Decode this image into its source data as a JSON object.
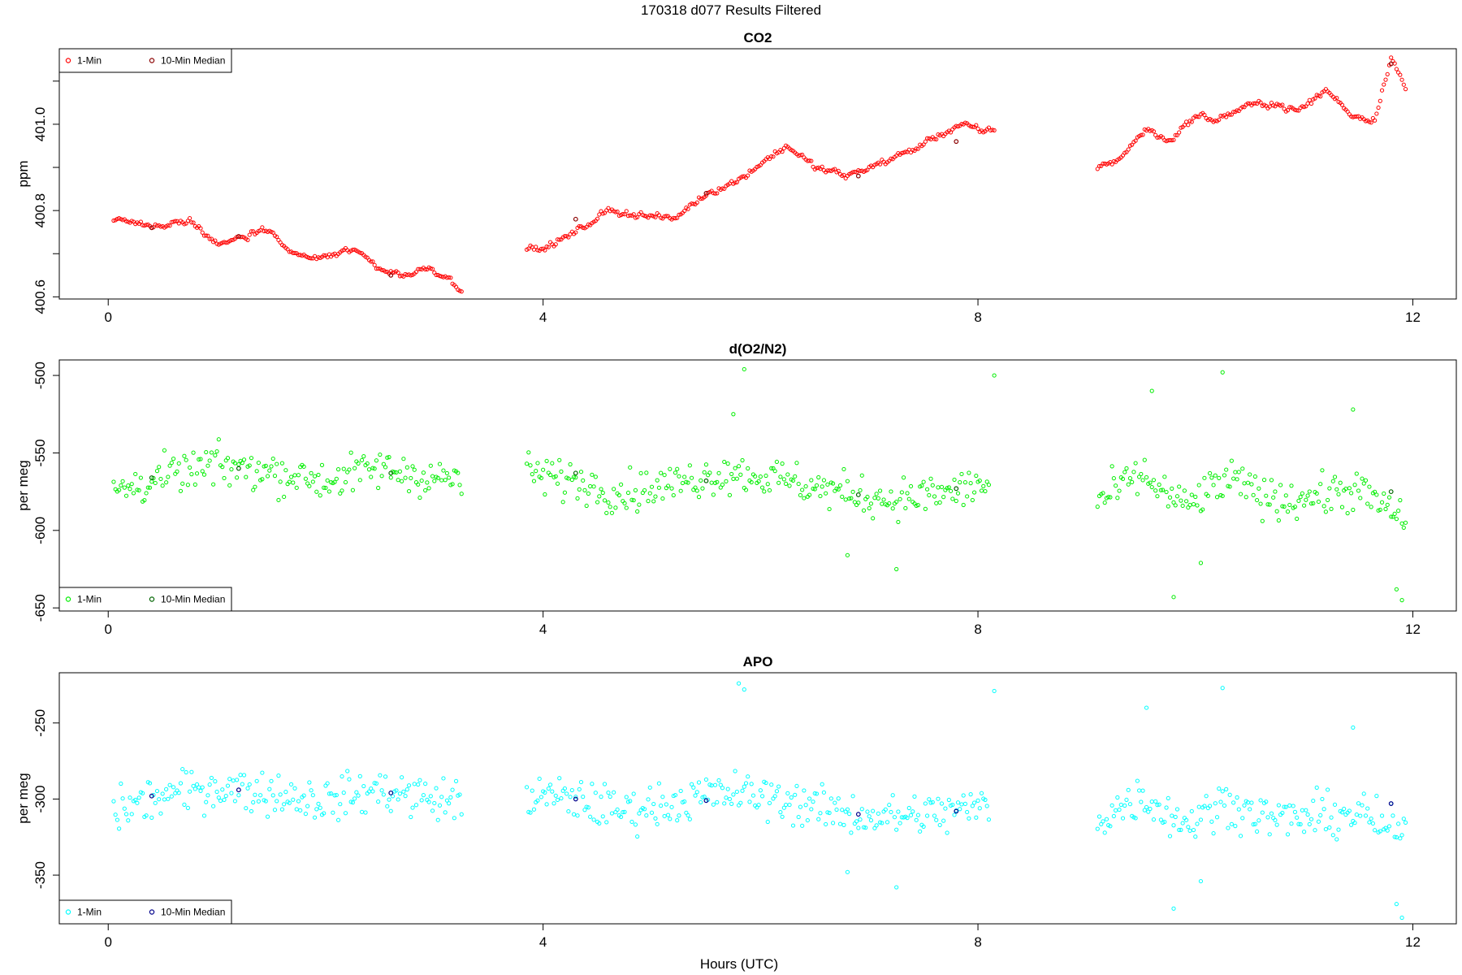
{
  "page_title": "170318   d077   Results Filtered",
  "xlabel": "Hours (UTC)",
  "legend_labels": {
    "one_min": "1-Min",
    "ten_min": "10-Min Median"
  },
  "chart_data": [
    {
      "type": "scatter",
      "title": "CO2",
      "ylabel": "ppm",
      "xlim": [
        -0.45,
        12.4
      ],
      "ylim": [
        400.595,
        401.175
      ],
      "xticks": [
        0,
        4,
        8,
        12
      ],
      "xtick_labels": [
        "0",
        "4",
        "8",
        "12"
      ],
      "yticks": [
        400.6,
        400.7,
        400.8,
        400.9,
        401.0,
        401.1
      ],
      "ytick_labels": [
        "400.6",
        "",
        "400.8",
        "",
        "401.0",
        ""
      ],
      "legend_position": "top-left",
      "colors": {
        "one_min": "#ff0000",
        "ten_min": "#8b0000"
      },
      "series": [
        {
          "name": "1-Min",
          "segments": [
            {
              "x": [
                0.05,
                0.3,
                0.5,
                0.75,
                1.0,
                1.25,
                1.45,
                1.7,
                2.0,
                2.25,
                2.55,
                2.75,
                2.95,
                3.15,
                3.25
              ],
              "y": [
                400.78,
                400.77,
                400.76,
                400.78,
                400.72,
                400.74,
                400.76,
                400.7,
                400.69,
                400.71,
                400.66,
                400.65,
                400.67,
                400.64,
                400.62
              ]
            },
            {
              "x": [
                3.85,
                4.0,
                4.3,
                4.6,
                4.9,
                5.2,
                5.5,
                5.8,
                6.0,
                6.25,
                6.5,
                6.8,
                7.1,
                7.4,
                7.6,
                7.85,
                8.05,
                8.15
              ],
              "y": [
                400.71,
                400.71,
                400.75,
                400.8,
                400.79,
                400.78,
                400.84,
                400.87,
                400.91,
                400.95,
                400.9,
                400.88,
                400.91,
                400.94,
                400.97,
                401.0,
                400.98,
                400.99
              ]
            },
            {
              "x": [
                9.1,
                9.3,
                9.55,
                9.75,
                10.0,
                10.2,
                10.45,
                10.7,
                10.95,
                11.2,
                11.45,
                11.65,
                11.8,
                11.95
              ],
              "y": [
                400.9,
                400.92,
                400.99,
                400.96,
                401.02,
                401.01,
                401.04,
                401.05,
                401.03,
                401.08,
                401.02,
                401.01,
                401.16,
                401.07
              ]
            }
          ]
        },
        {
          "name": "10-Min Median",
          "x": [
            0.4,
            1.2,
            2.6,
            4.3,
            5.5,
            6.9,
            7.8,
            11.8
          ],
          "y": [
            400.76,
            400.74,
            400.65,
            400.78,
            400.84,
            400.88,
            400.96,
            401.14
          ]
        }
      ]
    },
    {
      "type": "scatter",
      "title": "d(O2/N2)",
      "ylabel": "per meg",
      "xlim": [
        -0.45,
        12.4
      ],
      "ylim": [
        -652,
        -490
      ],
      "xticks": [
        0,
        4,
        8,
        12
      ],
      "xtick_labels": [
        "0",
        "4",
        "8",
        "12"
      ],
      "yticks": [
        -650,
        -600,
        -550,
        -500
      ],
      "ytick_labels": [
        "-650",
        "-600",
        "-550",
        "-500"
      ],
      "legend_position": "bottom-left",
      "colors": {
        "one_min": "#00ee00",
        "ten_min": "#006400"
      },
      "series": [
        {
          "name": "1-Min",
          "segments": [
            {
              "x": [
                0.05,
                0.5,
                1.0,
                1.5,
                2.0,
                2.5,
                3.0,
                3.25
              ],
              "y": [
                -575,
                -566,
                -558,
                -562,
                -568,
                -560,
                -566,
                -567
              ]
            },
            {
              "x": [
                3.85,
                4.3,
                4.7,
                5.2,
                5.7,
                6.2,
                6.7,
                7.2,
                7.7,
                8.1
              ],
              "y": [
                -563,
                -568,
                -576,
                -570,
                -562,
                -567,
                -575,
                -580,
                -576,
                -570
              ]
            },
            {
              "x": [
                9.1,
                9.5,
                9.9,
                10.3,
                10.7,
                11.1,
                11.5,
                11.95
              ],
              "y": [
                -582,
                -564,
                -585,
                -567,
                -580,
                -578,
                -574,
                -595
              ]
            }
          ],
          "outliers": {
            "x": [
              5.85,
              5.75,
              8.15,
              9.6,
              10.25,
              11.45,
              6.8,
              7.25,
              9.8,
              10.05,
              11.9,
              11.85
            ],
            "y": [
              -496,
              -525,
              -500,
              -510,
              -498,
              -522,
              -616,
              -625,
              -643,
              -621,
              -645,
              -638
            ]
          }
        },
        {
          "name": "10-Min Median",
          "x": [
            0.4,
            1.2,
            2.6,
            4.3,
            5.5,
            6.9,
            7.8,
            11.8
          ],
          "y": [
            -566,
            -560,
            -563,
            -563,
            -568,
            -577,
            -573,
            -575
          ]
        }
      ]
    },
    {
      "type": "scatter",
      "title": "APO",
      "ylabel": "per meg",
      "xlim": [
        -0.45,
        12.4
      ],
      "ylim": [
        -382,
        -217
      ],
      "xticks": [
        0,
        4,
        8,
        12
      ],
      "xtick_labels": [
        "0",
        "4",
        "8",
        "12"
      ],
      "yticks": [
        -350,
        -300,
        -250
      ],
      "ytick_labels": [
        "-350",
        "-300",
        "-250"
      ],
      "legend_position": "bottom-left",
      "colors": {
        "one_min": "#00ffff",
        "ten_min": "#00008b"
      },
      "series": [
        {
          "name": "1-Min",
          "segments": [
            {
              "x": [
                0.05,
                0.5,
                1.0,
                1.5,
                2.0,
                2.5,
                3.0,
                3.25
              ],
              "y": [
                -308,
                -298,
                -292,
                -296,
                -301,
                -294,
                -300,
                -302
              ]
            },
            {
              "x": [
                3.85,
                4.3,
                4.7,
                5.2,
                5.7,
                6.2,
                6.7,
                7.2,
                7.7,
                8.1
              ],
              "y": [
                -298,
                -300,
                -308,
                -302,
                -296,
                -300,
                -309,
                -312,
                -309,
                -304
              ]
            },
            {
              "x": [
                9.1,
                9.5,
                9.9,
                10.3,
                10.7,
                11.1,
                11.5,
                11.95
              ],
              "y": [
                -314,
                -298,
                -316,
                -302,
                -313,
                -312,
                -309,
                -326
              ]
            }
          ],
          "outliers": {
            "x": [
              5.8,
              5.85,
              8.15,
              9.55,
              10.25,
              11.45,
              6.8,
              7.25,
              9.8,
              10.05,
              11.9,
              11.85
            ],
            "y": [
              -224,
              -228,
              -229,
              -240,
              -227,
              -253,
              -348,
              -358,
              -372,
              -354,
              -378,
              -369
            ]
          }
        },
        {
          "name": "10-Min Median",
          "x": [
            0.4,
            1.2,
            2.6,
            4.3,
            5.5,
            6.9,
            7.8,
            11.8
          ],
          "y": [
            -298,
            -294,
            -296,
            -300,
            -301,
            -310,
            -308,
            -303
          ]
        }
      ]
    }
  ]
}
